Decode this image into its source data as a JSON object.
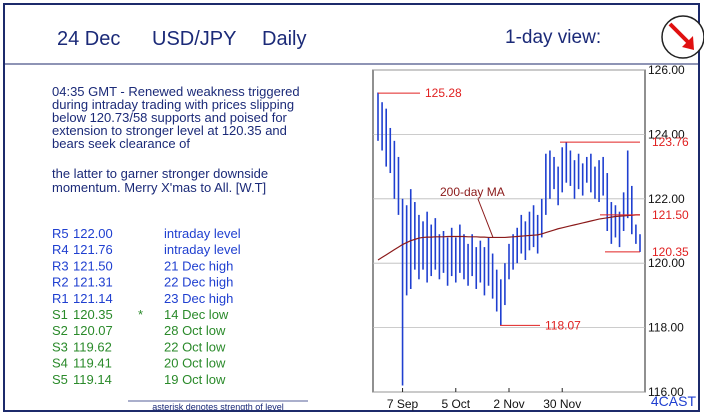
{
  "header": {
    "date": "24 Dec",
    "pair": "USD/JPY",
    "period": "Daily",
    "view": "1-day view:"
  },
  "commentary": [
    "04:35 GMT - Renewed weakness triggered",
    "during intraday trading with prices slipping",
    "below 120.73/58 supports and poised for",
    "extension to stronger level at 120.35 and",
    "bears seek clearance of",
    "the latter to garner stronger downside",
    "momentum. Merry X'mas to All. [W.T]"
  ],
  "levels_table": {
    "rows": [
      {
        "key": "R5",
        "value": "122.00",
        "note": "intraday level"
      },
      {
        "key": "R4",
        "value": "121.76",
        "note": "intraday level"
      },
      {
        "key": "R3",
        "value": "121.50",
        "note": "21 Dec high"
      },
      {
        "key": "R2",
        "value": "121.31",
        "note": "22 Dec high"
      },
      {
        "key": "R1",
        "value": "121.14",
        "note": "23 Dec high"
      },
      {
        "key": "S1",
        "value": "120.35",
        "star": "*",
        "note": "14 Dec low"
      },
      {
        "key": "S2",
        "value": "120.07",
        "note": "28 Oct low"
      },
      {
        "key": "S3",
        "value": "119.62",
        "note": "22 Oct low"
      },
      {
        "key": "S4",
        "value": "119.41",
        "note": "20 Oct low"
      },
      {
        "key": "S5",
        "value": "119.14",
        "note": "19 Oct low"
      }
    ]
  },
  "footnote": "asterisk denotes strength of level",
  "brand": "4CAST",
  "chart_data": {
    "type": "ohlc",
    "bar_color": "#1f3fd0",
    "categories": [
      null,
      null,
      null,
      null,
      null,
      null,
      "7 Sep",
      null,
      null,
      null,
      null,
      null,
      null,
      null,
      null,
      null,
      null,
      null,
      null,
      "5 Oct",
      null,
      null,
      null,
      null,
      null,
      null,
      null,
      null,
      null,
      null,
      null,
      null,
      "2 Nov",
      null,
      null,
      null,
      null,
      null,
      null,
      null,
      null,
      null,
      null,
      null,
      null,
      "30 Nov",
      null,
      null,
      null,
      null,
      null,
      null,
      null,
      null,
      null,
      null,
      null,
      null,
      null,
      null,
      null,
      null,
      null,
      null,
      null
    ],
    "high": [
      125.3,
      125.0,
      124.8,
      124.2,
      123.8,
      123.3,
      122.0,
      121.8,
      122.3,
      121.9,
      121.5,
      121.3,
      121.6,
      121.2,
      121.4,
      120.9,
      121.0,
      120.8,
      121.1,
      120.8,
      121.2,
      120.9,
      120.6,
      120.9,
      120.5,
      120.7,
      120.5,
      120.8,
      120.3,
      119.8,
      119.5,
      120.0,
      120.6,
      120.9,
      121.1,
      121.5,
      121.3,
      121.6,
      121.8,
      121.5,
      122.0,
      123.4,
      123.5,
      123.3,
      123.0,
      123.6,
      123.76,
      123.5,
      123.2,
      123.4,
      123.1,
      123.3,
      123.4,
      123.0,
      123.2,
      123.3,
      122.8,
      121.9,
      121.8,
      121.6,
      122.2,
      123.5,
      122.4,
      121.2,
      120.9
    ],
    "low": [
      123.8,
      123.5,
      123.0,
      122.8,
      122.0,
      121.5,
      116.2,
      119.0,
      119.2,
      119.8,
      119.5,
      119.8,
      119.4,
      119.6,
      119.8,
      119.5,
      119.7,
      119.3,
      119.6,
      119.4,
      119.7,
      119.5,
      119.3,
      119.6,
      119.2,
      119.4,
      119.0,
      119.3,
      118.9,
      118.5,
      118.07,
      118.7,
      119.5,
      119.8,
      120.0,
      120.3,
      120.1,
      120.4,
      120.5,
      120.3,
      120.8,
      121.5,
      122.0,
      122.3,
      121.8,
      122.2,
      122.5,
      122.4,
      122.0,
      122.3,
      122.1,
      122.5,
      122.2,
      122.0,
      121.9,
      122.1,
      121.0,
      120.6,
      120.8,
      120.5,
      121.0,
      121.4,
      120.9,
      120.6,
      120.35
    ],
    "series": [
      {
        "name": "200-day MA",
        "color": "#8b1a1a",
        "values": [
          120.1,
          120.18,
          120.26,
          120.34,
          120.42,
          120.5,
          120.58,
          120.64,
          120.7,
          120.74,
          120.78,
          120.8,
          120.81,
          120.81,
          120.82,
          120.82,
          120.82,
          120.83,
          120.83,
          120.83,
          120.83,
          120.83,
          120.82,
          120.82,
          120.82,
          120.81,
          120.81,
          120.8,
          120.8,
          120.8,
          120.8,
          120.8,
          120.81,
          120.82,
          120.83,
          120.84,
          120.85,
          120.86,
          120.87,
          120.88,
          120.91,
          120.95,
          120.99,
          121.03,
          121.07,
          121.1,
          121.13,
          121.16,
          121.19,
          121.22,
          121.25,
          121.28,
          121.31,
          121.34,
          121.37,
          121.39,
          121.41,
          121.43,
          121.45,
          121.46,
          121.47,
          121.48,
          121.49,
          121.5,
          121.5
        ]
      }
    ],
    "levels": [
      125.28,
      123.76,
      {
        "value": 121.5,
        "label": "121.50"
      },
      120.35,
      118.07
    ],
    "level_color": "#e02020",
    "ylim": [
      116,
      126
    ],
    "yticks": [
      {
        "value": 116,
        "label": "116.00"
      },
      {
        "value": 118,
        "label": "118.00"
      },
      {
        "value": 120,
        "label": "120.00"
      },
      {
        "value": 122,
        "label": "122.00"
      },
      {
        "value": 124,
        "label": "124.00"
      },
      {
        "value": 126,
        "label": "126.00"
      }
    ],
    "grid": true
  }
}
